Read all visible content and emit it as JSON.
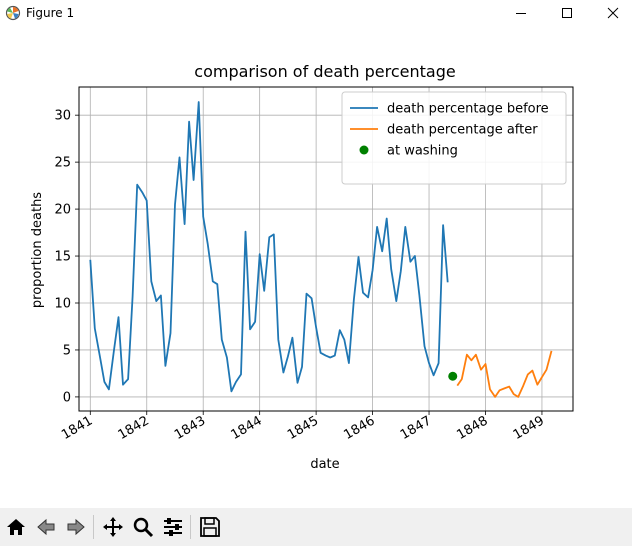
{
  "window": {
    "title": "Figure 1"
  },
  "toolbar": {
    "buttons": [
      {
        "name": "home-icon",
        "label": "Home"
      },
      {
        "name": "back-icon",
        "label": "Back"
      },
      {
        "name": "forward-icon",
        "label": "Forward"
      },
      {
        "name": "pan-icon",
        "label": "Pan"
      },
      {
        "name": "zoom-icon",
        "label": "Zoom"
      },
      {
        "name": "configure-subplots-icon",
        "label": "Configure subplots"
      },
      {
        "name": "save-icon",
        "label": "Save"
      }
    ]
  },
  "chart_data": {
    "type": "line",
    "title": "comparison of death percentage",
    "xlabel": "date",
    "ylabel": "proportion deaths",
    "x_ticks": [
      "1841",
      "1842",
      "1843",
      "1844",
      "1845",
      "1846",
      "1847",
      "1848",
      "1849"
    ],
    "y_ticks": [
      0,
      5,
      10,
      15,
      20,
      25,
      30
    ],
    "xlim": [
      1840.8,
      1849.55
    ],
    "ylim": [
      -1.5,
      33
    ],
    "grid": true,
    "legend_position": "top-right",
    "colors": {
      "before": "#1f77b4",
      "after": "#ff7f0e",
      "marker": "#008000"
    },
    "series": [
      {
        "name": "death percentage before",
        "color": "#1f77b4",
        "kind": "line",
        "x": [
          1841.0,
          1841.08,
          1841.17,
          1841.25,
          1841.33,
          1841.42,
          1841.5,
          1841.58,
          1841.67,
          1841.75,
          1841.83,
          1841.92,
          1842.0,
          1842.08,
          1842.17,
          1842.25,
          1842.33,
          1842.42,
          1842.5,
          1842.58,
          1842.67,
          1842.75,
          1842.83,
          1842.92,
          1843.0,
          1843.08,
          1843.17,
          1843.25,
          1843.33,
          1843.42,
          1843.5,
          1843.58,
          1843.67,
          1843.75,
          1843.83,
          1843.92,
          1844.0,
          1844.08,
          1844.17,
          1844.25,
          1844.33,
          1844.42,
          1844.5,
          1844.58,
          1844.67,
          1844.75,
          1844.83,
          1844.92,
          1845.0,
          1845.08,
          1845.17,
          1845.25,
          1845.33,
          1845.42,
          1845.5,
          1845.58,
          1845.67,
          1845.75,
          1845.83,
          1845.92,
          1846.0,
          1846.08,
          1846.17,
          1846.25,
          1846.33,
          1846.42,
          1846.5,
          1846.58,
          1846.67,
          1846.75,
          1846.83,
          1846.92,
          1847.0,
          1847.08,
          1847.17,
          1847.25,
          1847.33
        ],
        "y": [
          14.6,
          7.3,
          4.3,
          1.6,
          0.8,
          5.0,
          8.5,
          1.3,
          1.9,
          10.7,
          22.6,
          21.8,
          20.9,
          12.3,
          10.2,
          10.8,
          3.3,
          6.8,
          20.5,
          25.5,
          18.4,
          29.3,
          23.1,
          31.4,
          19.2,
          16.3,
          12.3,
          12.0,
          6.1,
          4.2,
          0.6,
          1.6,
          2.4,
          17.6,
          7.2,
          8.0,
          15.2,
          11.3,
          17.0,
          17.3,
          6.1,
          2.6,
          4.3,
          6.3,
          1.5,
          3.2,
          11.0,
          10.5,
          7.4,
          4.7,
          4.4,
          4.2,
          4.4,
          7.1,
          6.1,
          3.6,
          10.4,
          14.9,
          11.1,
          10.6,
          13.5,
          18.1,
          15.5,
          19.0,
          13.6,
          10.2,
          13.4,
          18.1,
          14.4,
          15.0,
          10.8,
          5.4,
          3.6,
          2.3,
          3.6,
          18.3,
          12.2
        ]
      },
      {
        "name": "death percentage after",
        "color": "#ff7f0e",
        "kind": "line",
        "x": [
          1847.5,
          1847.58,
          1847.67,
          1847.75,
          1847.83,
          1847.92,
          1848.0,
          1848.08,
          1848.17,
          1848.25,
          1848.33,
          1848.42,
          1848.5,
          1848.58,
          1848.67,
          1848.75,
          1848.83,
          1848.92,
          1849.0,
          1849.08,
          1849.17
        ],
        "y": [
          1.2,
          1.9,
          4.5,
          3.9,
          4.5,
          2.9,
          3.5,
          0.8,
          0.0,
          0.7,
          0.9,
          1.1,
          0.3,
          0.0,
          1.2,
          2.4,
          2.8,
          1.3,
          2.1,
          2.9,
          4.9
        ]
      },
      {
        "name": "at washing",
        "color": "#008000",
        "kind": "scatter",
        "x": [
          1847.42
        ],
        "y": [
          2.2
        ]
      }
    ]
  }
}
